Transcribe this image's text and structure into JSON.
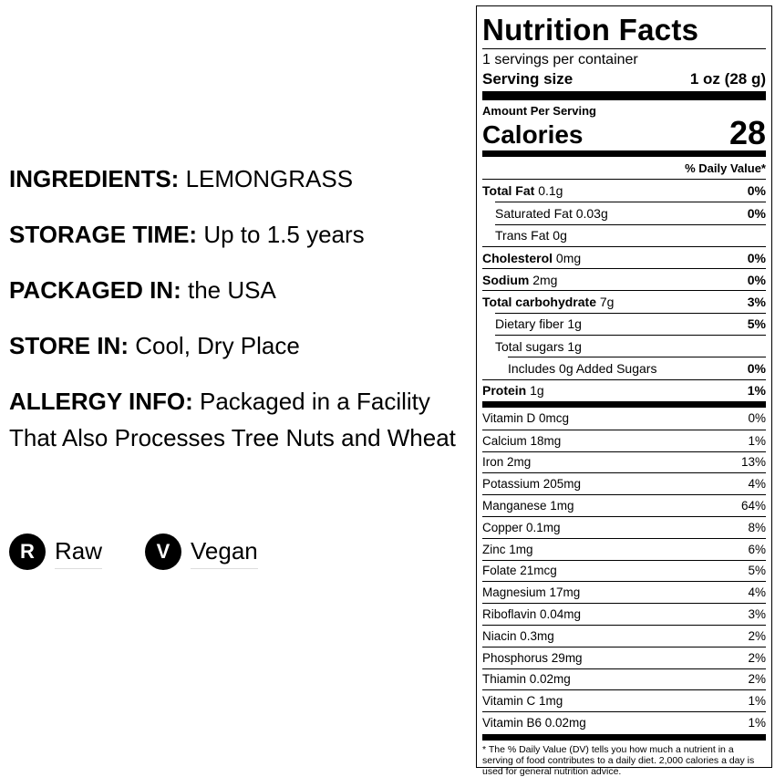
{
  "info": [
    {
      "label": "INGREDIENTS:",
      "value": "LEMONGRASS"
    },
    {
      "label": "STORAGE TIME:",
      "value": "Up to 1.5 years"
    },
    {
      "label": "PACKAGED IN:",
      "value": "the USA"
    },
    {
      "label": "STORE IN:",
      "value": "Cool, Dry Place"
    },
    {
      "label": "ALLERGY INFO:",
      "value": "Packaged in a Facility That Also Processes Tree Nuts and Wheat"
    }
  ],
  "badges": [
    {
      "letter": "R",
      "label": "Raw"
    },
    {
      "letter": "V",
      "label": "Vegan"
    }
  ],
  "label": {
    "title": "Nutrition Facts",
    "servings": "1 servings per container",
    "serving_size_label": "Serving size",
    "serving_size": "1 oz (28 g)",
    "amount_per_serving": "Amount Per Serving",
    "calories_label": "Calories",
    "calories": "28",
    "dv_header": "% Daily Value*",
    "nutrients": [
      {
        "name": "Total Fat",
        "amount": "0.1g",
        "dv": "0%",
        "bold": true,
        "indent": 0
      },
      {
        "name": "Saturated Fat",
        "amount": "0.03g",
        "dv": "0%",
        "bold": false,
        "indent": 1
      },
      {
        "name": "Trans Fat",
        "amount": "0g",
        "dv": "",
        "bold": false,
        "indent": 1
      },
      {
        "name": "Cholesterol",
        "amount": "0mg",
        "dv": "0%",
        "bold": true,
        "indent": 0
      },
      {
        "name": "Sodium",
        "amount": "2mg",
        "dv": "0%",
        "bold": true,
        "indent": 0
      },
      {
        "name": "Total carbohydrate",
        "amount": "7g",
        "dv": "3%",
        "bold": true,
        "indent": 0
      },
      {
        "name": "Dietary fiber",
        "amount": "1g",
        "dv": "5%",
        "bold": false,
        "indent": 1
      },
      {
        "name": "Total sugars",
        "amount": "1g",
        "dv": "",
        "bold": false,
        "indent": 1
      },
      {
        "name": "Includes 0g Added Sugars",
        "amount": "",
        "dv": "0%",
        "bold": false,
        "indent": 2
      },
      {
        "name": "Protein",
        "amount": "1g",
        "dv": "1%",
        "bold": true,
        "indent": 0
      }
    ],
    "vitamins": [
      {
        "name": "Vitamin D 0mcg",
        "dv": "0%"
      },
      {
        "name": "Calcium 18mg",
        "dv": "1%"
      },
      {
        "name": "Iron 2mg",
        "dv": "13%"
      },
      {
        "name": "Potassium 205mg",
        "dv": "4%"
      },
      {
        "name": "Manganese 1mg",
        "dv": "64%"
      },
      {
        "name": "Copper 0.1mg",
        "dv": "8%"
      },
      {
        "name": "Zinc 1mg",
        "dv": "6%"
      },
      {
        "name": "Folate 21mcg",
        "dv": "5%"
      },
      {
        "name": "Magnesium 17mg",
        "dv": "4%"
      },
      {
        "name": "Riboflavin 0.04mg",
        "dv": "3%"
      },
      {
        "name": "Niacin 0.3mg",
        "dv": "2%"
      },
      {
        "name": "Phosphorus 29mg",
        "dv": "2%"
      },
      {
        "name": "Thiamin 0.02mg",
        "dv": "2%"
      },
      {
        "name": "Vitamin C 1mg",
        "dv": "1%"
      },
      {
        "name": "Vitamin B6 0.02mg",
        "dv": "1%"
      }
    ],
    "footnote": "* The % Daily Value (DV) tells you how much a nutrient in a serving of food contributes to a daily diet. 2,000 calories a day is used for general nutrition advice."
  }
}
